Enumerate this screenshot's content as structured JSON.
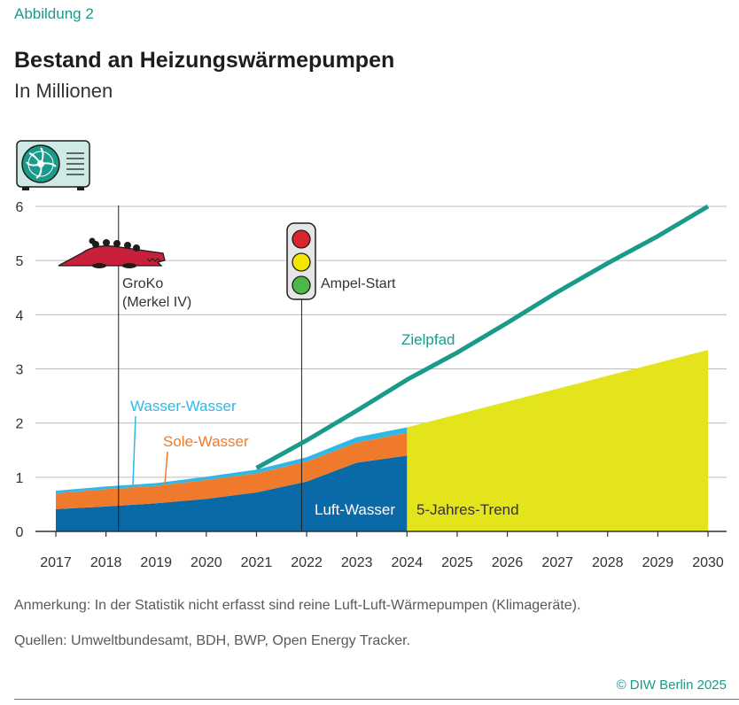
{
  "header": {
    "figure_label": "Abbildung 2",
    "title": "Bestand an Heizungswärmepumpen",
    "subtitle": "In Millionen"
  },
  "footer": {
    "note": "Anmerkung: In der Statistik nicht erfasst sind reine Luft-Luft-Wärmepumpen (Klimageräte).",
    "sources": "Quellen: Umweltbundesamt, BDH, BWP, Open Energy Tracker.",
    "copyright": "© DIW Berlin 2025"
  },
  "colors": {
    "luft_wasser": "#0a6aa8",
    "sole_wasser": "#f07a2c",
    "wasser_wasser": "#2fb8e6",
    "trend": "#e4e41c",
    "zielpfad": "#1a9a8a",
    "axis": "#333333",
    "grid": "#bdbdbd"
  },
  "icons": {
    "top": "air-source-heat-pump-icon",
    "groko": "crocodile-icon",
    "ampel": "traffic-light-icon"
  },
  "chart_data": {
    "type": "area",
    "title": "Bestand an Heizungswärmepumpen",
    "ylabel": "In Millionen",
    "x": [
      2017,
      2018,
      2019,
      2020,
      2021,
      2022,
      2023,
      2024,
      2025,
      2026,
      2027,
      2028,
      2029,
      2030
    ],
    "xlim": [
      2017,
      2030
    ],
    "ylim": [
      0,
      6
    ],
    "yticks": [
      0,
      1,
      2,
      3,
      4,
      5,
      6
    ],
    "grid": true,
    "stacked_series": [
      {
        "name": "Luft-Wasser",
        "x": [
          2017,
          2018,
          2019,
          2020,
          2021,
          2022,
          2023,
          2024
        ],
        "values": [
          0.41,
          0.46,
          0.52,
          0.6,
          0.72,
          0.92,
          1.27,
          1.4
        ]
      },
      {
        "name": "Sole-Wasser",
        "x": [
          2017,
          2018,
          2019,
          2020,
          2021,
          2022,
          2023,
          2024
        ],
        "values": [
          0.29,
          0.32,
          0.32,
          0.35,
          0.35,
          0.37,
          0.37,
          0.42
        ]
      },
      {
        "name": "Wasser-Wasser",
        "x": [
          2017,
          2018,
          2019,
          2020,
          2021,
          2022,
          2023,
          2024
        ],
        "values": [
          0.05,
          0.05,
          0.05,
          0.06,
          0.07,
          0.08,
          0.1,
          0.1
        ]
      }
    ],
    "trend": {
      "name": "5-Jahres-Trend",
      "x": [
        2024,
        2030
      ],
      "values": [
        1.92,
        3.35
      ]
    },
    "target_line": {
      "name": "Zielpfad",
      "x": [
        2021,
        2022,
        2023,
        2024,
        2025,
        2026,
        2027,
        2028,
        2029,
        2030
      ],
      "values": [
        1.17,
        1.68,
        2.23,
        2.8,
        3.3,
        3.85,
        4.42,
        4.95,
        5.45,
        6.0
      ]
    },
    "events": [
      {
        "x": 2018.25,
        "label_line1": "GroKo",
        "label_line2": "(Merkel IV)"
      },
      {
        "x": 2021.9,
        "label_line1": "Ampel-Start"
      }
    ]
  }
}
